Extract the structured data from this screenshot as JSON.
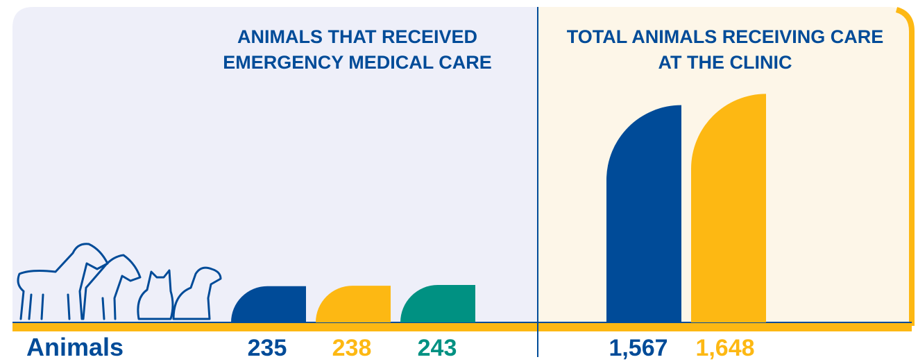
{
  "row_label": "Animals",
  "chart_data": [
    {
      "type": "bar",
      "title": [
        "ANIMALS THAT RECEIVED",
        "EMERGENCY MEDICAL CARE"
      ],
      "values": [
        235,
        238,
        243
      ],
      "colors": [
        "#004b98",
        "#fdb813",
        "#009182"
      ],
      "ylim": [
        0,
        1800
      ]
    },
    {
      "type": "bar",
      "title": [
        "TOTAL ANIMALS RECEIVING CARE",
        "AT THE CLINIC"
      ],
      "values": [
        1567,
        1648
      ],
      "value_labels": [
        "1,567",
        "1,648"
      ],
      "colors": [
        "#004b98",
        "#fdb813"
      ],
      "ylim": [
        0,
        2000
      ]
    }
  ]
}
